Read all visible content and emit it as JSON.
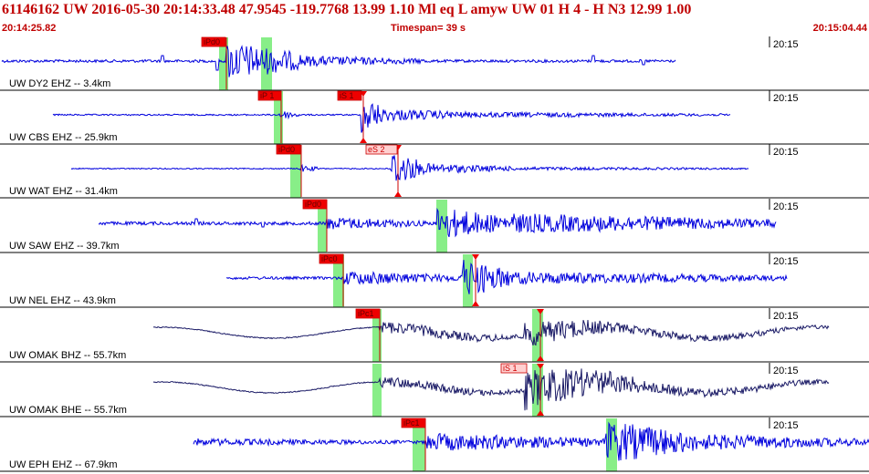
{
  "header": {
    "title": "61146162 UW 2016-05-30 20:14:33.48   47.9545 -119.7768  13.99  1.10 Ml  eq  L amyw     UW 01  H   4  -  H N3   12.99  1.00",
    "start_time": "20:14:25.82",
    "timespan": "Timespan=  39 s",
    "end_time": "20:15:04.44"
  },
  "colors": {
    "trace_hz": "#0000dd",
    "trace_bb": "#1a1a66",
    "pick_tag": "#ee0000",
    "pick_line": "#cc0000",
    "window": "#88ee88",
    "header_text": "#c00000"
  },
  "tick_label": "20:15",
  "channels": [
    {
      "label": "UW DY2 EHZ -- 3.4km",
      "picks": [
        "iPd0"
      ],
      "color": "hz"
    },
    {
      "label": "UW CBS EHZ -- 25.9km",
      "picks": [
        "iP 1",
        "iS 1"
      ],
      "color": "hz"
    },
    {
      "label": "UW WAT EHZ -- 31.4km",
      "picks": [
        "iPd0",
        "eS 2"
      ],
      "color": "hz"
    },
    {
      "label": "UW SAW EHZ -- 39.7km",
      "picks": [
        "iPd0"
      ],
      "color": "hz"
    },
    {
      "label": "UW NEL EHZ -- 43.9km",
      "picks": [
        "iPc0"
      ],
      "color": "hz"
    },
    {
      "label": "UW OMAK BHZ -- 55.7km",
      "picks": [
        "iPc1"
      ],
      "color": "bb"
    },
    {
      "label": "UW OMAK BHE -- 55.7km",
      "picks": [
        "iS 1"
      ],
      "color": "bb"
    },
    {
      "label": "UW EPH EHZ -- 67.9km",
      "picks": [
        "iPc1"
      ],
      "color": "hz"
    }
  ]
}
